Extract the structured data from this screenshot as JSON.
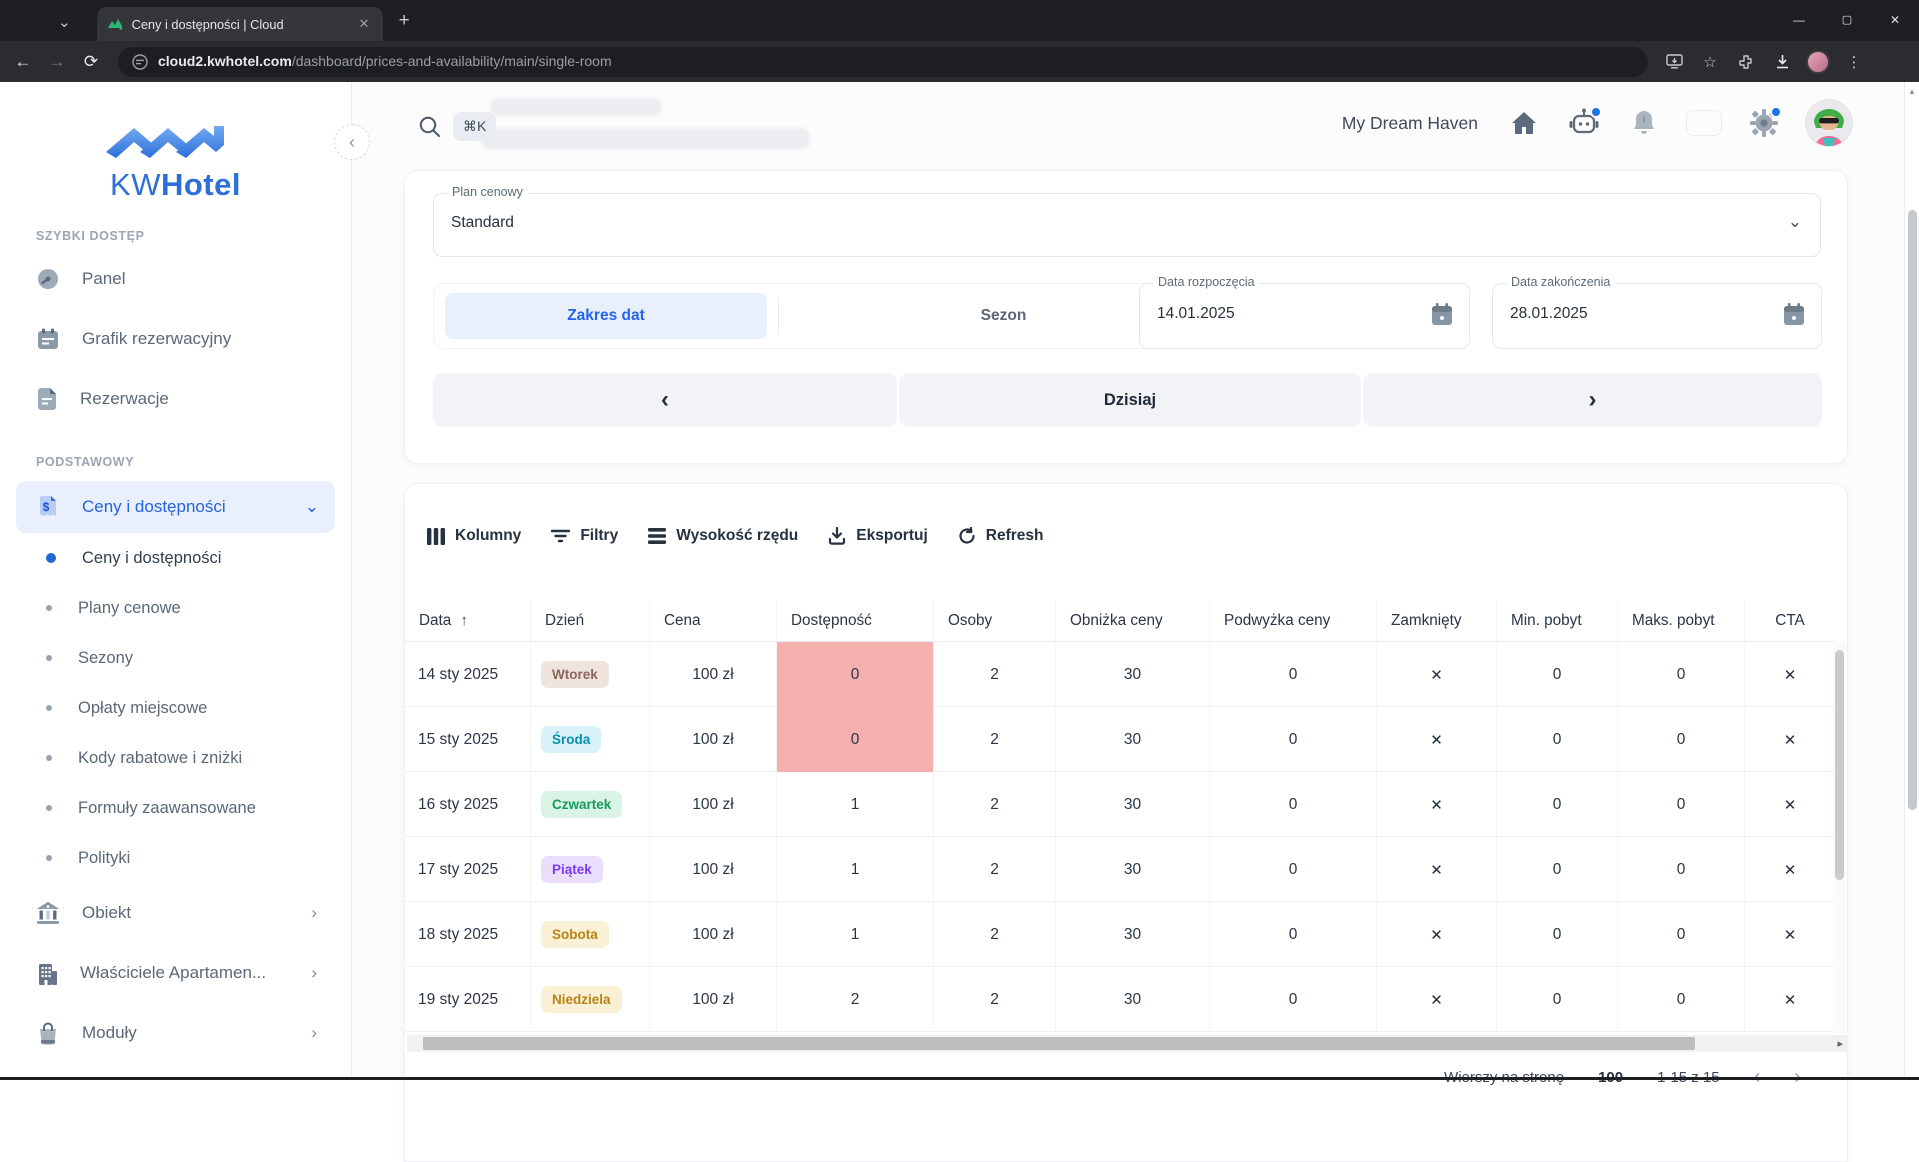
{
  "browser": {
    "tab_title": "Ceny i dostępności | Cloud",
    "url_host": "cloud2.kwhotel.com",
    "url_path": "/dashboard/prices-and-availability/main/single-room"
  },
  "brand": {
    "logo_light": "KW",
    "logo_bold": "Hotel"
  },
  "header": {
    "shortcut": "⌘K",
    "property": "My Dream Haven"
  },
  "sidebar": {
    "section_quick": "SZYBKI DOSTĘP",
    "section_basic": "PODSTAWOWY",
    "quick_items": [
      {
        "label": "Panel",
        "icon": "gauge-icon"
      },
      {
        "label": "Grafik rezerwacyjny",
        "icon": "calendar-icon"
      },
      {
        "label": "Rezerwacje",
        "icon": "note-icon"
      }
    ],
    "active_item": "Ceny i dostępności",
    "sub_items": [
      "Ceny i dostępności",
      "Plany cenowe",
      "Sezony",
      "Opłaty miejscowe",
      "Kody rabatowe i zniżki",
      "Formuły zaawansowane",
      "Polityki"
    ],
    "bottom_items": [
      {
        "label": "Obiekt",
        "icon": "bank-icon"
      },
      {
        "label": "Właściciele Apartamen...",
        "icon": "building-icon"
      },
      {
        "label": "Moduły",
        "icon": "bag-icon"
      }
    ]
  },
  "filters": {
    "plan_label": "Plan cenowy",
    "plan_value": "Standard",
    "mode_range": "Zakres dat",
    "mode_season": "Sezon",
    "start_label": "Data rozpoczęcia",
    "start_value": "14.01.2025",
    "end_label": "Data zakończenia",
    "end_value": "28.01.2025",
    "today": "Dzisiaj"
  },
  "toolbar": {
    "columns": "Kolumny",
    "filters": "Filtry",
    "row_height": "Wysokość rzędu",
    "export": "Eksportuj",
    "refresh": "Refresh"
  },
  "table": {
    "columns": [
      "Data",
      "Dzień",
      "Cena",
      "Dostępność",
      "Osoby",
      "Obniżka ceny",
      "Podwyżka ceny",
      "Zamknięty",
      "Min. pobyt",
      "Maks. pobyt",
      "CTA"
    ],
    "rows": [
      {
        "date": "14 sty 2025",
        "day": "Wtorek",
        "day_variant": "tue",
        "price": "100 zł",
        "availability": "0",
        "low": true,
        "persons": "2",
        "discount": "30",
        "increase": "0",
        "closed": "✕",
        "min_stay": "0",
        "max_stay": "0",
        "cta": "✕"
      },
      {
        "date": "15 sty 2025",
        "day": "Środa",
        "day_variant": "wed",
        "price": "100 zł",
        "availability": "0",
        "low": true,
        "persons": "2",
        "discount": "30",
        "increase": "0",
        "closed": "✕",
        "min_stay": "0",
        "max_stay": "0",
        "cta": "✕"
      },
      {
        "date": "16 sty 2025",
        "day": "Czwartek",
        "day_variant": "thu",
        "price": "100 zł",
        "availability": "1",
        "low": false,
        "persons": "2",
        "discount": "30",
        "increase": "0",
        "closed": "✕",
        "min_stay": "0",
        "max_stay": "0",
        "cta": "✕"
      },
      {
        "date": "17 sty 2025",
        "day": "Piątek",
        "day_variant": "fri",
        "price": "100 zł",
        "availability": "1",
        "low": false,
        "persons": "2",
        "discount": "30",
        "increase": "0",
        "closed": "✕",
        "min_stay": "0",
        "max_stay": "0",
        "cta": "✕"
      },
      {
        "date": "18 sty 2025",
        "day": "Sobota",
        "day_variant": "sat",
        "price": "100 zł",
        "availability": "1",
        "low": false,
        "persons": "2",
        "discount": "30",
        "increase": "0",
        "closed": "✕",
        "min_stay": "0",
        "max_stay": "0",
        "cta": "✕"
      },
      {
        "date": "19 sty 2025",
        "day": "Niedziela",
        "day_variant": "sun",
        "price": "100 zł",
        "availability": "2",
        "low": false,
        "persons": "2",
        "discount": "30",
        "increase": "0",
        "closed": "✕",
        "min_stay": "0",
        "max_stay": "0",
        "cta": "✕"
      }
    ]
  },
  "pagination": {
    "label": "Wierszy na stronę",
    "value": "100",
    "range": "1-15 z 15"
  },
  "colors": {
    "accent": "#2563eb",
    "low_availability_bg": "#f5afaf",
    "polish_flag_red": "#d62612",
    "day_badges": {
      "tue": {
        "bg": "#efe4de",
        "fg": "#8a675a"
      },
      "wed": {
        "bg": "#d9f1f8",
        "fg": "#0b8fae"
      },
      "thu": {
        "bg": "#d9f3e4",
        "fg": "#189a5d"
      },
      "fri": {
        "bg": "#eadffb",
        "fg": "#7c3bed"
      },
      "sat": {
        "bg": "#faf0d6",
        "fg": "#b98313"
      },
      "sun": {
        "bg": "#faf0d6",
        "fg": "#b98313"
      }
    }
  },
  "icons": {
    "sort_asc": "↑",
    "chevron_left": "‹",
    "chevron_right": "›",
    "chevron_down": "⌄",
    "tab_caret": "⌄",
    "plus": "+",
    "close_x": "✕",
    "kebab": "⋮",
    "minimize": "—",
    "maximize": "▢",
    "back": "←",
    "forward": "→",
    "reload": "⟳",
    "star": "☆",
    "scroll_up": "▲",
    "scroll_right": "▸"
  }
}
